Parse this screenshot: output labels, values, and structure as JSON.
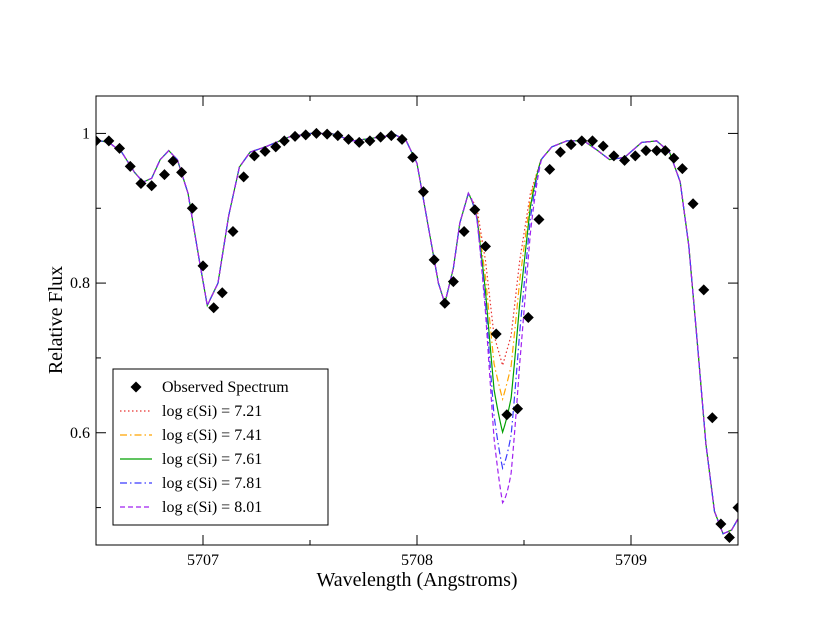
{
  "chart_data": {
    "type": "line",
    "title": "",
    "xlabel": "Wavelength (Angstroms)",
    "ylabel": "Relative Flux",
    "xlim": [
      5706.5,
      5709.5
    ],
    "ylim": [
      0.45,
      1.05
    ],
    "xticks": [
      {
        "value": 5707,
        "label": "5707"
      },
      {
        "value": 5708,
        "label": "5708"
      },
      {
        "value": 5709,
        "label": "5709"
      }
    ],
    "yticks": [
      {
        "value": 0.6,
        "label": "0.6"
      },
      {
        "value": 0.8,
        "label": "0.8"
      },
      {
        "value": 1.0,
        "label": "1"
      }
    ],
    "legend_position": "bottom-left",
    "observed": {
      "name": "Observed Spectrum",
      "color": "#000000",
      "marker": "diamond",
      "points": [
        [
          5706.5,
          0.99
        ],
        [
          5706.56,
          0.99
        ],
        [
          5706.61,
          0.98
        ],
        [
          5706.66,
          0.956
        ],
        [
          5706.71,
          0.933
        ],
        [
          5706.76,
          0.93
        ],
        [
          5706.82,
          0.945
        ],
        [
          5706.86,
          0.963
        ],
        [
          5706.9,
          0.948
        ],
        [
          5706.95,
          0.9
        ],
        [
          5707.0,
          0.823
        ],
        [
          5707.05,
          0.767
        ],
        [
          5707.09,
          0.787
        ],
        [
          5707.14,
          0.869
        ],
        [
          5707.19,
          0.942
        ],
        [
          5707.24,
          0.97
        ],
        [
          5707.29,
          0.976
        ],
        [
          5707.34,
          0.982
        ],
        [
          5707.38,
          0.99
        ],
        [
          5707.43,
          0.996
        ],
        [
          5707.48,
          0.998
        ],
        [
          5707.53,
          1.0
        ],
        [
          5707.58,
          0.999
        ],
        [
          5707.63,
          0.997
        ],
        [
          5707.68,
          0.992
        ],
        [
          5707.73,
          0.988
        ],
        [
          5707.78,
          0.99
        ],
        [
          5707.83,
          0.995
        ],
        [
          5707.88,
          0.997
        ],
        [
          5707.93,
          0.992
        ],
        [
          5707.98,
          0.968
        ],
        [
          5708.03,
          0.922
        ],
        [
          5708.08,
          0.831
        ],
        [
          5708.13,
          0.773
        ],
        [
          5708.17,
          0.802
        ],
        [
          5708.22,
          0.869
        ],
        [
          5708.27,
          0.898
        ],
        [
          5708.32,
          0.849
        ],
        [
          5708.37,
          0.732
        ],
        [
          5708.42,
          0.624
        ],
        [
          5708.47,
          0.632
        ],
        [
          5708.52,
          0.754
        ],
        [
          5708.57,
          0.885
        ],
        [
          5708.62,
          0.952
        ],
        [
          5708.67,
          0.975
        ],
        [
          5708.72,
          0.985
        ],
        [
          5708.77,
          0.99
        ],
        [
          5708.82,
          0.99
        ],
        [
          5708.87,
          0.983
        ],
        [
          5708.92,
          0.97
        ],
        [
          5708.97,
          0.964
        ],
        [
          5709.02,
          0.97
        ],
        [
          5709.07,
          0.977
        ],
        [
          5709.12,
          0.977
        ],
        [
          5709.16,
          0.977
        ],
        [
          5709.2,
          0.967
        ],
        [
          5709.24,
          0.953
        ],
        [
          5709.29,
          0.906
        ],
        [
          5709.34,
          0.791
        ],
        [
          5709.38,
          0.62
        ],
        [
          5709.42,
          0.478
        ],
        [
          5709.46,
          0.46
        ],
        [
          5709.5,
          0.5
        ]
      ]
    },
    "baseline": [
      [
        5706.5,
        0.991
      ],
      [
        5706.56,
        0.988
      ],
      [
        5706.62,
        0.975
      ],
      [
        5706.68,
        0.948
      ],
      [
        5706.72,
        0.935
      ],
      [
        5706.76,
        0.94
      ],
      [
        5706.8,
        0.965
      ],
      [
        5706.84,
        0.977
      ],
      [
        5706.88,
        0.965
      ],
      [
        5706.93,
        0.92
      ],
      [
        5706.98,
        0.835
      ],
      [
        5707.02,
        0.77
      ],
      [
        5707.07,
        0.8
      ],
      [
        5707.12,
        0.89
      ],
      [
        5707.17,
        0.955
      ],
      [
        5707.22,
        0.975
      ],
      [
        5707.3,
        0.983
      ],
      [
        5707.4,
        0.995
      ],
      [
        5707.5,
        1.0
      ],
      [
        5707.6,
        1.0
      ],
      [
        5707.7,
        0.99
      ],
      [
        5707.8,
        0.994
      ],
      [
        5707.9,
        0.998
      ],
      [
        5707.95,
        0.99
      ],
      [
        5708.0,
        0.96
      ],
      [
        5708.05,
        0.88
      ],
      [
        5708.1,
        0.8
      ],
      [
        5708.13,
        0.773
      ],
      [
        5708.17,
        0.82
      ],
      [
        5708.2,
        0.88
      ],
      [
        5708.24,
        0.92
      ],
      [
        5708.28,
        0.9
      ],
      [
        5708.32,
        0.83
      ],
      [
        5708.36,
        0.73
      ],
      [
        5708.4,
        0.69
      ],
      [
        5708.44,
        0.73
      ],
      [
        5708.48,
        0.83
      ],
      [
        5708.53,
        0.92
      ],
      [
        5708.58,
        0.965
      ],
      [
        5708.63,
        0.982
      ],
      [
        5708.7,
        0.99
      ],
      [
        5708.78,
        0.99
      ],
      [
        5708.84,
        0.978
      ],
      [
        5708.9,
        0.965
      ],
      [
        5708.97,
        0.968
      ],
      [
        5709.05,
        0.988
      ],
      [
        5709.12,
        0.99
      ],
      [
        5709.18,
        0.975
      ],
      [
        5709.23,
        0.935
      ],
      [
        5709.27,
        0.85
      ],
      [
        5709.31,
        0.72
      ],
      [
        5709.35,
        0.585
      ],
      [
        5709.39,
        0.495
      ],
      [
        5709.43,
        0.465
      ],
      [
        5709.47,
        0.47
      ],
      [
        5709.5,
        0.485
      ]
    ],
    "series": [
      {
        "name": "log ε(Si) = 7.21",
        "color": "#e8302f",
        "dash": "1.5,2.5",
        "center": 5708.4,
        "depth": 0.69
      },
      {
        "name": "log ε(Si) = 7.41",
        "color": "#ffa500",
        "dash": "7,3,1.5,3",
        "center": 5708.405,
        "depth": 0.645
      },
      {
        "name": "log ε(Si) = 7.61",
        "color": "#00a000",
        "dash": "",
        "center": 5708.41,
        "depth": 0.6
      },
      {
        "name": "log ε(Si) = 7.81",
        "color": "#3b3bff",
        "dash": "7,3,1.5,3",
        "center": 5708.415,
        "depth": 0.55
      },
      {
        "name": "log ε(Si) = 8.01",
        "color": "#a020f0",
        "dash": "5,3",
        "center": 5708.42,
        "depth": 0.5
      }
    ]
  }
}
